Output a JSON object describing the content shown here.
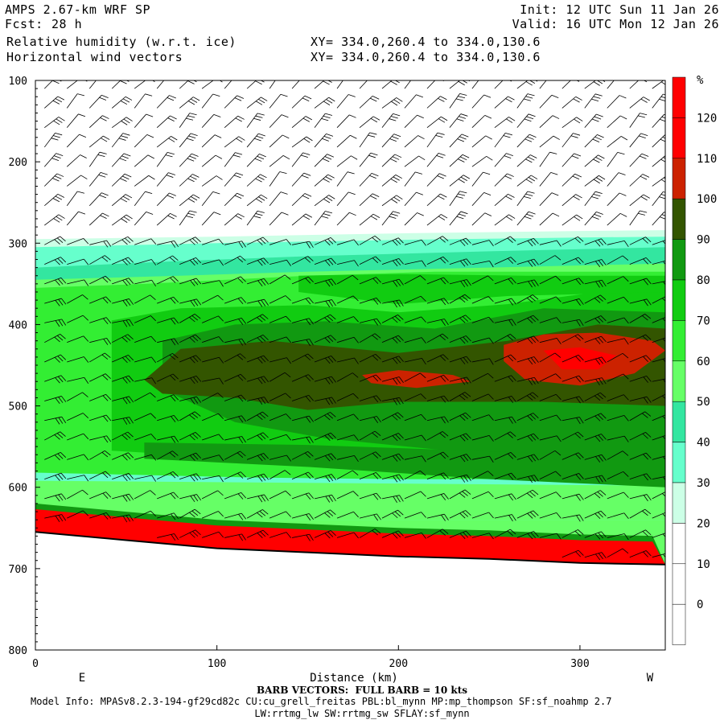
{
  "header": {
    "model": "AMPS 2.67-km WRF SP",
    "fcst_label": "Fcst:",
    "fcst_value": "28 h",
    "var1": "Relative humidity (w.r.t. ice)",
    "var2": "Horizontal wind vectors",
    "xy1": "XY= 334.0,260.4 to 334.0,130.6",
    "xy2": "XY= 334.0,260.4 to 334.0,130.6",
    "init": "Init: 12 UTC Sun 11 Jan 26",
    "valid": "Valid: 16 UTC Mon 12 Jan 26"
  },
  "footer": {
    "barb_note": "BARB VECTORS:  FULL BARB = 10 kts",
    "model_info": "Model Info: MPASv8.2.3-194-gf29cd82c CU:cu_grell_freitas PBL:bl_mynn MP:mp_thompson SF:sf_noahmp 2.7",
    "physics": "LW:rrtmg_lw SW:rrtmg_sw SFLAY:sf_mynn"
  },
  "chart_data": {
    "type": "heatmap",
    "title": "Relative humidity (w.r.t. ice)",
    "xlabel": "Distance (km)",
    "ylabel": "",
    "x_range": [
      0,
      347
    ],
    "y_range": [
      100,
      800
    ],
    "y_axis_inverted": true,
    "x_ticks": [
      "0",
      "100",
      "200",
      "300"
    ],
    "x_tick_values": [
      0,
      100,
      200,
      300
    ],
    "y_ticks": [
      "100",
      "200",
      "300",
      "400",
      "500",
      "600",
      "700",
      "800"
    ],
    "y_tick_values": [
      100,
      200,
      300,
      400,
      500,
      600,
      700,
      800
    ],
    "left_end_label": "E",
    "right_end_label": "W",
    "colorbar": {
      "unit": "%",
      "levels": [
        0,
        10,
        20,
        30,
        40,
        50,
        60,
        70,
        80,
        90,
        100,
        110,
        120
      ],
      "colors": [
        "#ffffff",
        "#ffffff",
        "#ffffff",
        "#ccffe6",
        "#66ffcc",
        "#33e6a0",
        "#66ff66",
        "#33ee33",
        "#11cc11",
        "#119911",
        "#335500",
        "#cc2200",
        "#ff0000"
      ]
    },
    "terrain": {
      "x": [
        0,
        50,
        100,
        150,
        200,
        250,
        300,
        347
      ],
      "p": [
        655,
        665,
        675,
        680,
        685,
        688,
        693,
        695
      ]
    },
    "barbs_note": "Full barb = 10 kts",
    "grid": false
  },
  "colors": {
    "background": "#ffffff",
    "axis": "#000000",
    "barb": "#000000",
    "terrain_line": "#000000"
  }
}
